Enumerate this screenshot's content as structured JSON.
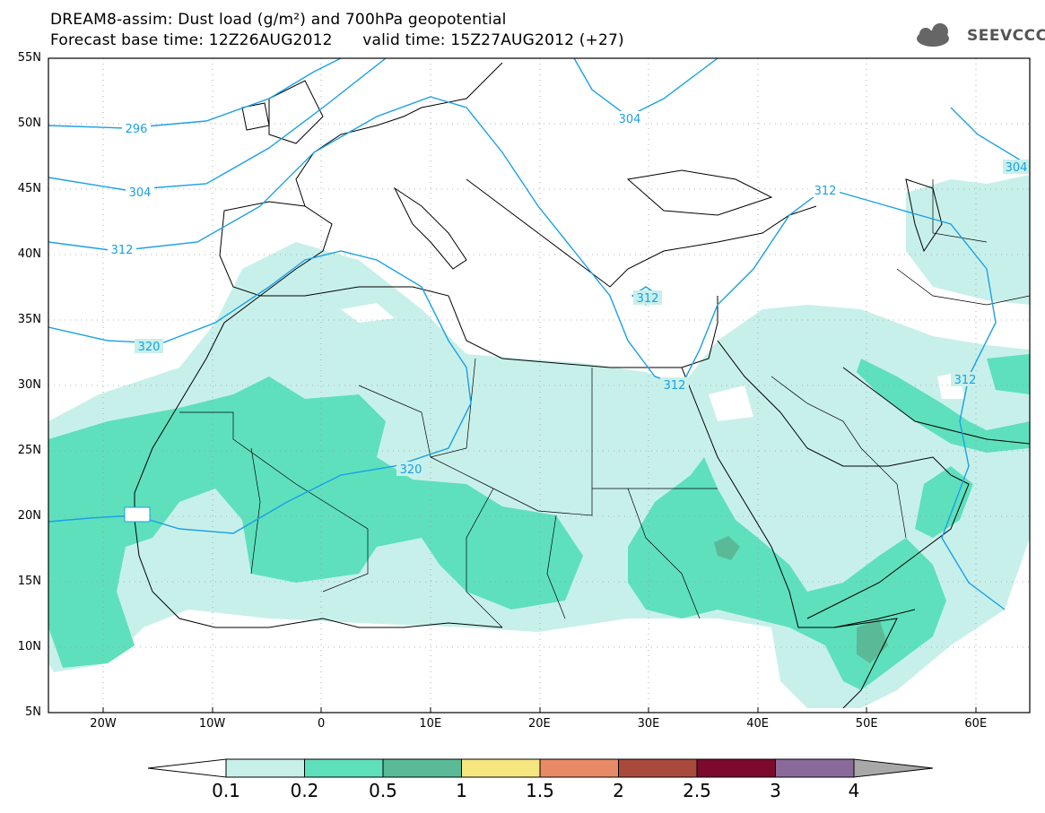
{
  "header": {
    "title_line1": "DREAM8-assim: Dust load (g/m²) and 700hPa geopotential",
    "title_line2": "Forecast base time: 12Z26AUG2012      valid time: 15Z27AUG2012 (+27)",
    "logo_text": "SEEVCCC"
  },
  "axes": {
    "lat_labels": [
      "55N",
      "50N",
      "45N",
      "40N",
      "35N",
      "30N",
      "25N",
      "20N",
      "15N",
      "10N",
      "5N"
    ],
    "lon_labels": [
      "20W",
      "10W",
      "0",
      "10E",
      "20E",
      "30E",
      "40E",
      "50E",
      "60E"
    ]
  },
  "contour_labels": [
    "296",
    "304",
    "312",
    "320",
    "320",
    "312",
    "312",
    "304",
    "312",
    "312",
    "304"
  ],
  "colorbar": {
    "ticks": [
      "0.1",
      "0.2",
      "0.5",
      "1",
      "1.5",
      "2",
      "2.5",
      "3",
      "4"
    ],
    "colors": [
      "#c8f0ea",
      "#5ee0bc",
      "#5aba98",
      "#f5e680",
      "#e98a66",
      "#aa4a3c",
      "#7c0a2e",
      "#8a6a9a"
    ],
    "under_color": "#ffffff",
    "over_color": "#a8a8a8"
  },
  "colors": {
    "contour": "#1aa0e8",
    "dust_low": "#c8f0ea",
    "dust_mid": "#5ee0bc",
    "dust_high": "#5aba98"
  }
}
